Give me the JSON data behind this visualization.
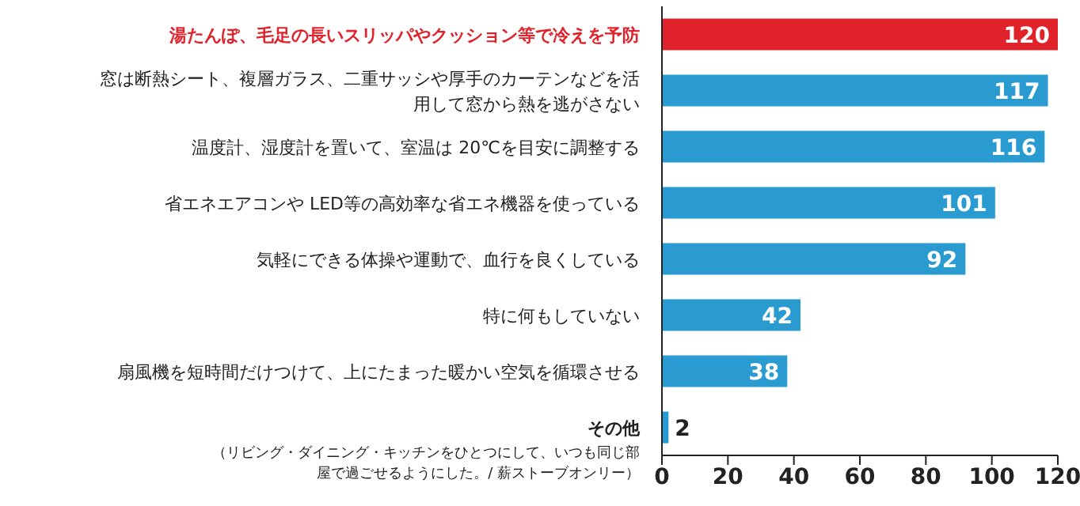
{
  "chart_data": {
    "type": "bar",
    "orientation": "horizontal",
    "categories": [
      "湯たんぽ、毛足の長いスリッパやクッション等で冷えを予防",
      "窓は断熱シート、複層ガラス、二重サッシや厚手のカーテンなどを活用して窓から熱を逃がさない",
      "温度計、湿度計を置いて、室温は 20℃を目安に調整する",
      "省エネエアコンや LED等の高効率な省エネ機器を使っている",
      "気軽にできる体操や運動で、血行を良くしている",
      "特に何もしていない",
      "扇風機を短時間だけつけて、上にたまった暖かい空気を循環させる",
      "その他"
    ],
    "annotations": [
      "（リビング・ダイニング・キッチンをひとつにして、いつも同じ部屋で過ごせるようにした。/ 薪ストーブオンリー）"
    ],
    "values": [
      120,
      117,
      116,
      101,
      92,
      42,
      38,
      2
    ],
    "colors": [
      "#e0232b",
      "#2a9bd1",
      "#2a9bd1",
      "#2a9bd1",
      "#2a9bd1",
      "#2a9bd1",
      "#2a9bd1",
      "#2a9bd1"
    ],
    "xlim": [
      0,
      120
    ],
    "xticks": [
      0,
      20,
      40,
      60,
      80,
      100,
      120
    ],
    "data_labels": true,
    "grid": false,
    "legend": false
  }
}
